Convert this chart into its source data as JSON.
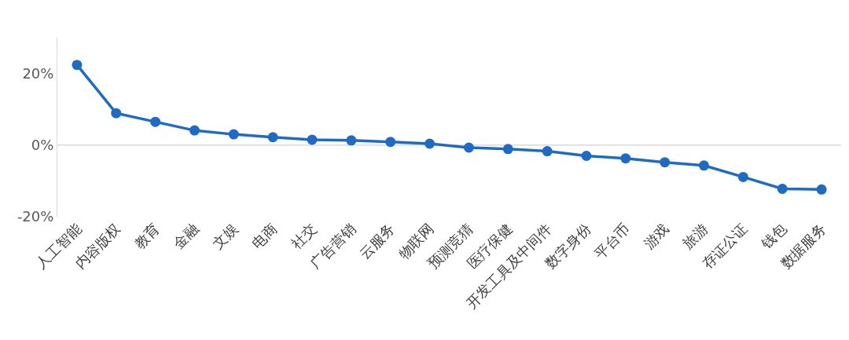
{
  "chart_data": {
    "type": "line",
    "categories": [
      "人工智能",
      "内容版权",
      "教育",
      "金融",
      "文娱",
      "电商",
      "社交",
      "广告营销",
      "云服务",
      "物联网",
      "预测竞猜",
      "医疗保健",
      "开发工具及中间件",
      "数字身份",
      "平台币",
      "游戏",
      "旅游",
      "存证公证",
      "钱包",
      "数据服务"
    ],
    "series": [
      {
        "color": "#1f6bc4",
        "values": [
          22.4,
          8.9,
          6.5,
          4.1,
          3.0,
          2.2,
          1.5,
          1.3,
          0.9,
          0.4,
          -0.7,
          -1.1,
          -1.7,
          -3.0,
          -3.7,
          -4.8,
          -5.7,
          -8.9,
          -12.2,
          -12.4
        ]
      }
    ],
    "ylim": [
      -20,
      30
    ],
    "yticks": [
      {
        "value": -20,
        "label": "-20%"
      },
      {
        "value": 0,
        "label": "0%"
      },
      {
        "value": 20,
        "label": "20%"
      }
    ],
    "ref_lines": [
      {
        "axis": "y",
        "value": 0,
        "color": "#d9d9d9"
      }
    ],
    "grid": false,
    "legend": false,
    "marker": "circle",
    "line_style": "solid"
  }
}
